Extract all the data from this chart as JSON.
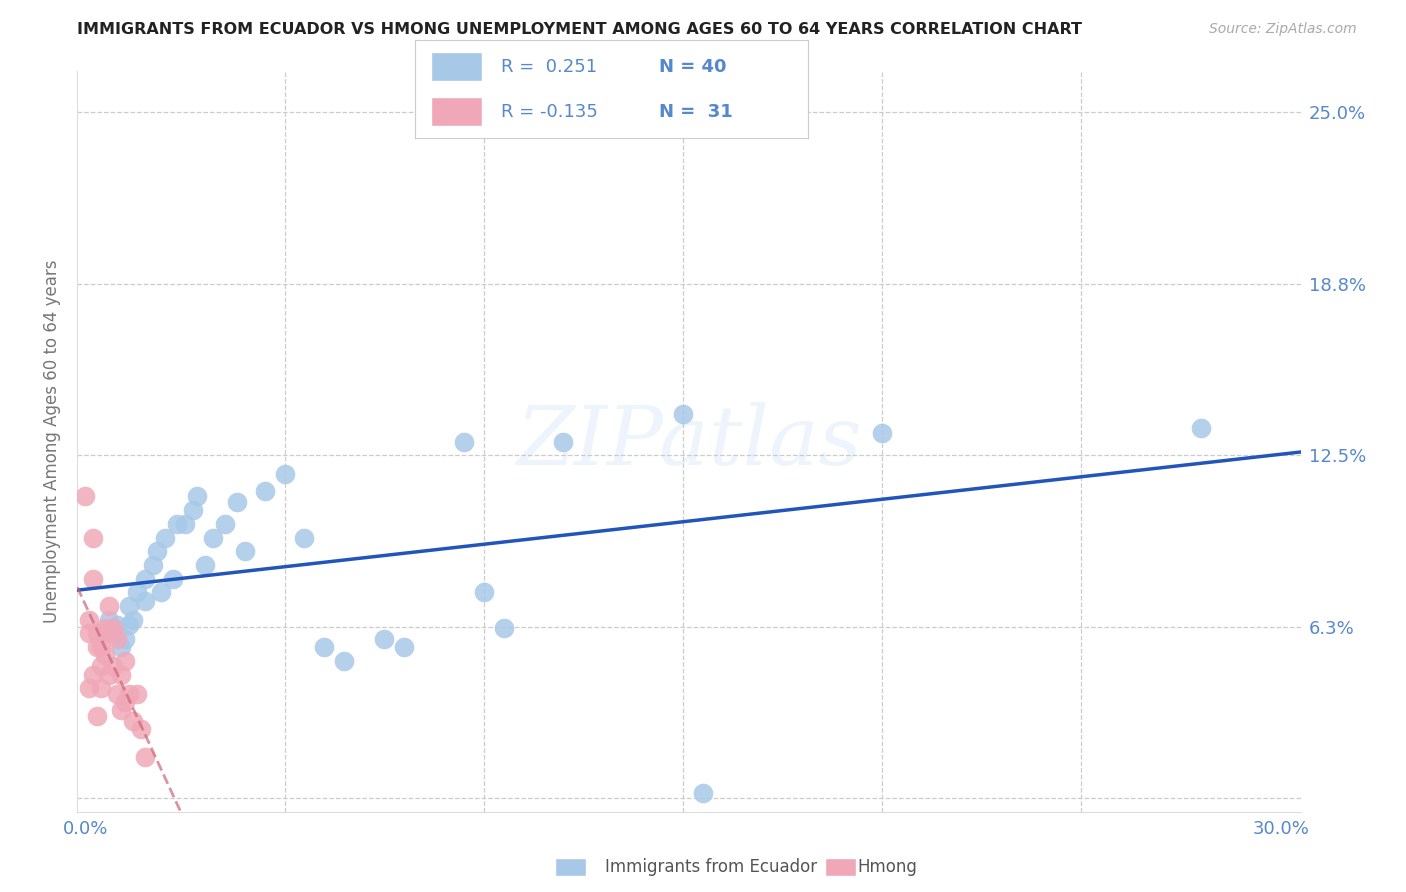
{
  "title": "IMMIGRANTS FROM ECUADOR VS HMONG UNEMPLOYMENT AMONG AGES 60 TO 64 YEARS CORRELATION CHART",
  "source": "Source: ZipAtlas.com",
  "ylabel": "Unemployment Among Ages 60 to 64 years",
  "xlim": [
    -0.002,
    0.305
  ],
  "ylim": [
    -0.005,
    0.265
  ],
  "ecuador_R": 0.251,
  "ecuador_N": 40,
  "hmong_R": -0.135,
  "hmong_N": 31,
  "ecuador_color": "#a8c8e8",
  "hmong_color": "#f0a8b8",
  "ecuador_line_color": "#2255bb",
  "hmong_line_color": "#cc6677",
  "watermark": "ZIPatlas",
  "background_color": "#ffffff",
  "grid_color": "#cccccc",
  "label_color": "#5588cc",
  "ecuador_x": [
    0.006,
    0.007,
    0.008,
    0.009,
    0.01,
    0.011,
    0.011,
    0.012,
    0.013,
    0.015,
    0.015,
    0.017,
    0.018,
    0.019,
    0.02,
    0.022,
    0.023,
    0.025,
    0.027,
    0.028,
    0.03,
    0.032,
    0.035,
    0.038,
    0.04,
    0.045,
    0.05,
    0.055,
    0.06,
    0.065,
    0.075,
    0.08,
    0.095,
    0.1,
    0.105,
    0.12,
    0.15,
    0.155,
    0.2,
    0.28
  ],
  "ecuador_y": [
    0.065,
    0.06,
    0.063,
    0.055,
    0.058,
    0.07,
    0.063,
    0.065,
    0.075,
    0.072,
    0.08,
    0.085,
    0.09,
    0.075,
    0.095,
    0.08,
    0.1,
    0.1,
    0.105,
    0.11,
    0.085,
    0.095,
    0.1,
    0.108,
    0.09,
    0.112,
    0.118,
    0.095,
    0.055,
    0.05,
    0.058,
    0.055,
    0.13,
    0.075,
    0.062,
    0.13,
    0.14,
    0.002,
    0.133,
    0.135
  ],
  "hmong_x": [
    0.0,
    0.001,
    0.001,
    0.001,
    0.002,
    0.002,
    0.002,
    0.003,
    0.003,
    0.003,
    0.004,
    0.004,
    0.004,
    0.005,
    0.005,
    0.006,
    0.006,
    0.006,
    0.007,
    0.007,
    0.008,
    0.008,
    0.009,
    0.009,
    0.01,
    0.01,
    0.011,
    0.012,
    0.013,
    0.014,
    0.015
  ],
  "hmong_y": [
    0.11,
    0.065,
    0.06,
    0.04,
    0.095,
    0.08,
    0.045,
    0.06,
    0.055,
    0.03,
    0.055,
    0.048,
    0.04,
    0.062,
    0.052,
    0.07,
    0.06,
    0.045,
    0.062,
    0.048,
    0.058,
    0.038,
    0.045,
    0.032,
    0.05,
    0.035,
    0.038,
    0.028,
    0.038,
    0.025,
    0.015
  ],
  "yticks": [
    0.0,
    0.0625,
    0.125,
    0.1875,
    0.25
  ],
  "ytick_labels": [
    "",
    "6.3%",
    "12.5%",
    "18.8%",
    "25.0%"
  ],
  "xticks": [
    0.0,
    0.05,
    0.1,
    0.15,
    0.2,
    0.25,
    0.3
  ],
  "xtick_labels": [
    "0.0%",
    "",
    "",
    "",
    "",
    "",
    "30.0%"
  ]
}
